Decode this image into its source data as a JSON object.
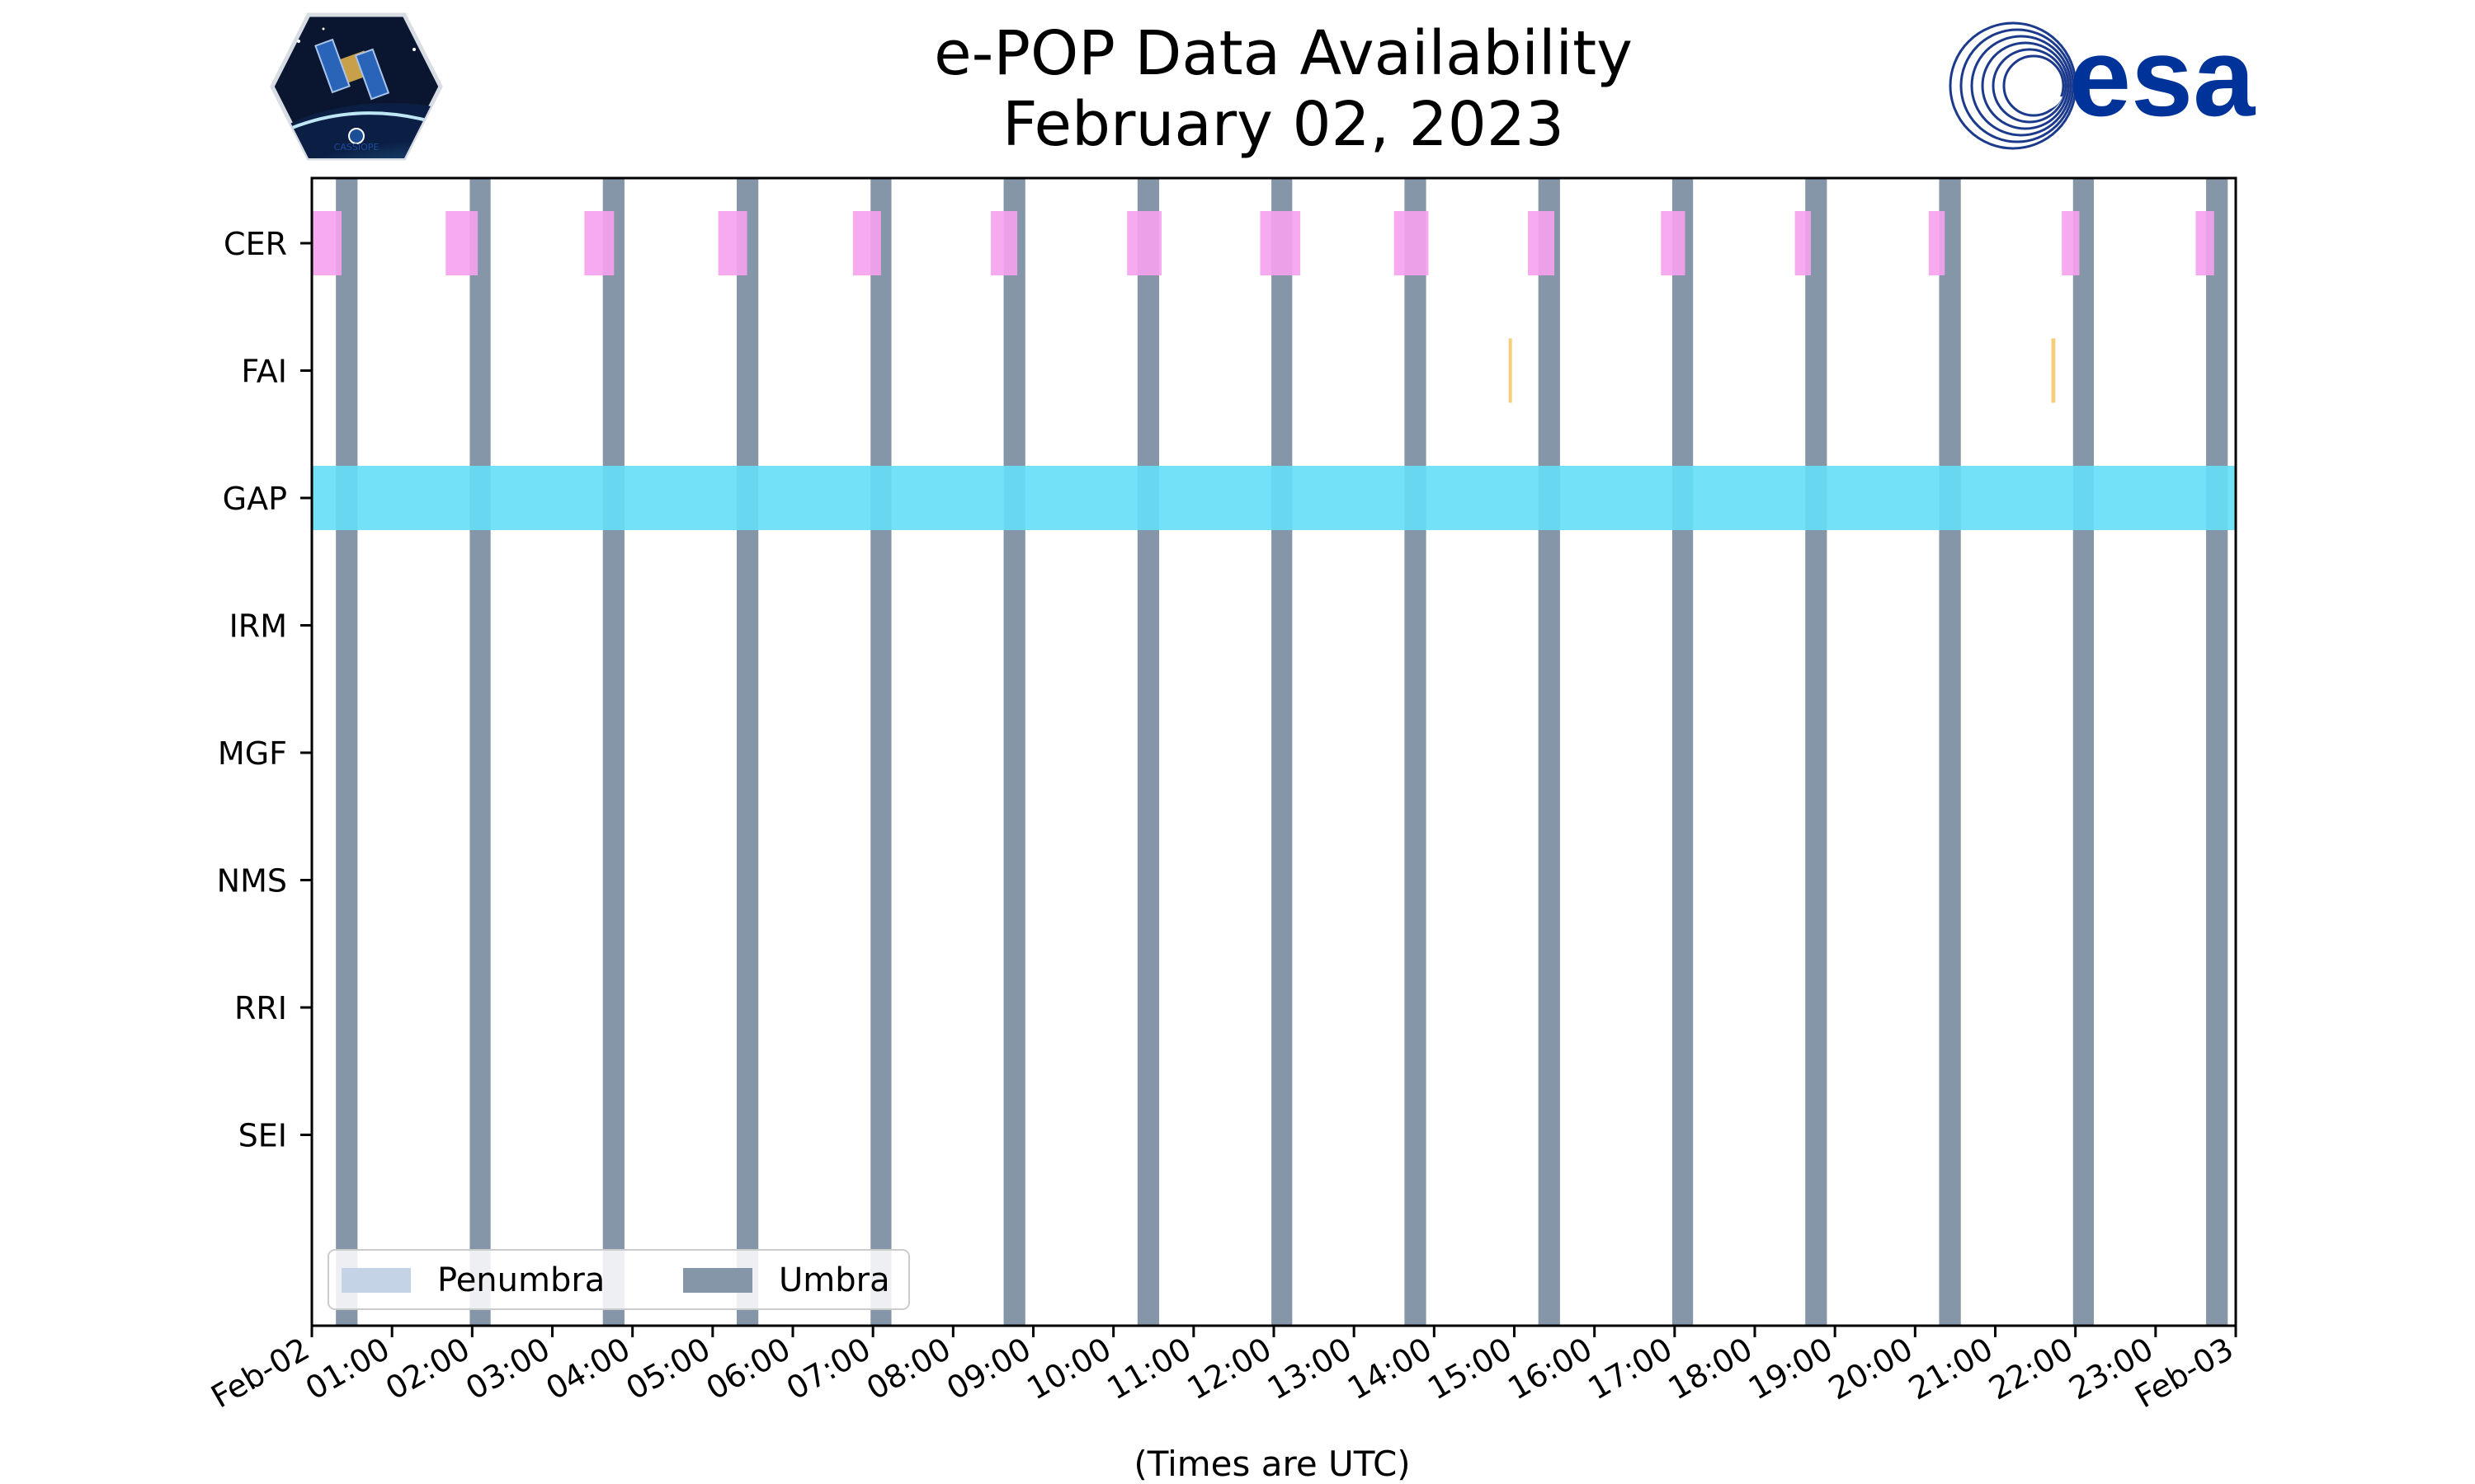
{
  "chart_data": {
    "type": "timeline",
    "title": "e-POP Data Availability",
    "subtitle": "February 02, 2023",
    "xlabel": "(Times are UTC)",
    "x_range_hours": [
      0,
      24
    ],
    "x_ticks": [
      "Feb-02",
      "01:00",
      "02:00",
      "03:00",
      "04:00",
      "05:00",
      "06:00",
      "07:00",
      "08:00",
      "09:00",
      "10:00",
      "11:00",
      "12:00",
      "13:00",
      "14:00",
      "15:00",
      "16:00",
      "17:00",
      "18:00",
      "19:00",
      "20:00",
      "21:00",
      "22:00",
      "23:00",
      "Feb-03"
    ],
    "instruments": [
      "CER",
      "FAI",
      "GAP",
      "IRM",
      "MGF",
      "NMS",
      "RRI",
      "SEI"
    ],
    "series": [
      {
        "name": "CER",
        "color": "#f7a1ee",
        "intervals": [
          [
            0.0,
            0.37
          ],
          [
            1.67,
            2.07
          ],
          [
            3.4,
            3.77
          ],
          [
            5.07,
            5.43
          ],
          [
            6.75,
            7.1
          ],
          [
            8.47,
            8.8
          ],
          [
            10.17,
            10.6
          ],
          [
            11.83,
            12.33
          ],
          [
            13.5,
            13.93
          ],
          [
            15.17,
            15.5
          ],
          [
            16.83,
            17.13
          ],
          [
            18.5,
            18.7
          ],
          [
            20.17,
            20.37
          ],
          [
            21.83,
            22.05
          ],
          [
            23.5,
            23.73
          ]
        ]
      },
      {
        "name": "FAI",
        "color": "#f5c86a",
        "intervals": [
          [
            14.93,
            14.97
          ],
          [
            21.7,
            21.75
          ]
        ]
      },
      {
        "name": "GAP",
        "color": "#64dff7",
        "intervals": [
          [
            0.0,
            24.0
          ]
        ]
      },
      {
        "name": "IRM",
        "color": "#cccccc",
        "intervals": []
      },
      {
        "name": "MGF",
        "color": "#cccccc",
        "intervals": []
      },
      {
        "name": "NMS",
        "color": "#cccccc",
        "intervals": []
      },
      {
        "name": "RRI",
        "color": "#cccccc",
        "intervals": []
      },
      {
        "name": "SEI",
        "color": "#cccccc",
        "intervals": []
      }
    ],
    "umbra": [
      [
        0.3,
        0.57
      ],
      [
        1.97,
        2.23
      ],
      [
        3.63,
        3.9
      ],
      [
        5.3,
        5.57
      ],
      [
        6.97,
        7.23
      ],
      [
        8.63,
        8.9
      ],
      [
        10.3,
        10.57
      ],
      [
        11.97,
        12.23
      ],
      [
        13.63,
        13.9
      ],
      [
        15.3,
        15.57
      ],
      [
        16.97,
        17.23
      ],
      [
        18.63,
        18.9
      ],
      [
        20.3,
        20.57
      ],
      [
        21.97,
        22.23
      ],
      [
        23.63,
        23.9
      ]
    ],
    "penumbra": [],
    "legend": {
      "placement": "lower-left",
      "entries": [
        {
          "label": "Penumbra",
          "color": "#c5d3e6"
        },
        {
          "label": "Umbra",
          "color": "#8596a8"
        }
      ]
    }
  },
  "logos": {
    "left_caption": "CASSIOPE",
    "right_text": "esa"
  }
}
